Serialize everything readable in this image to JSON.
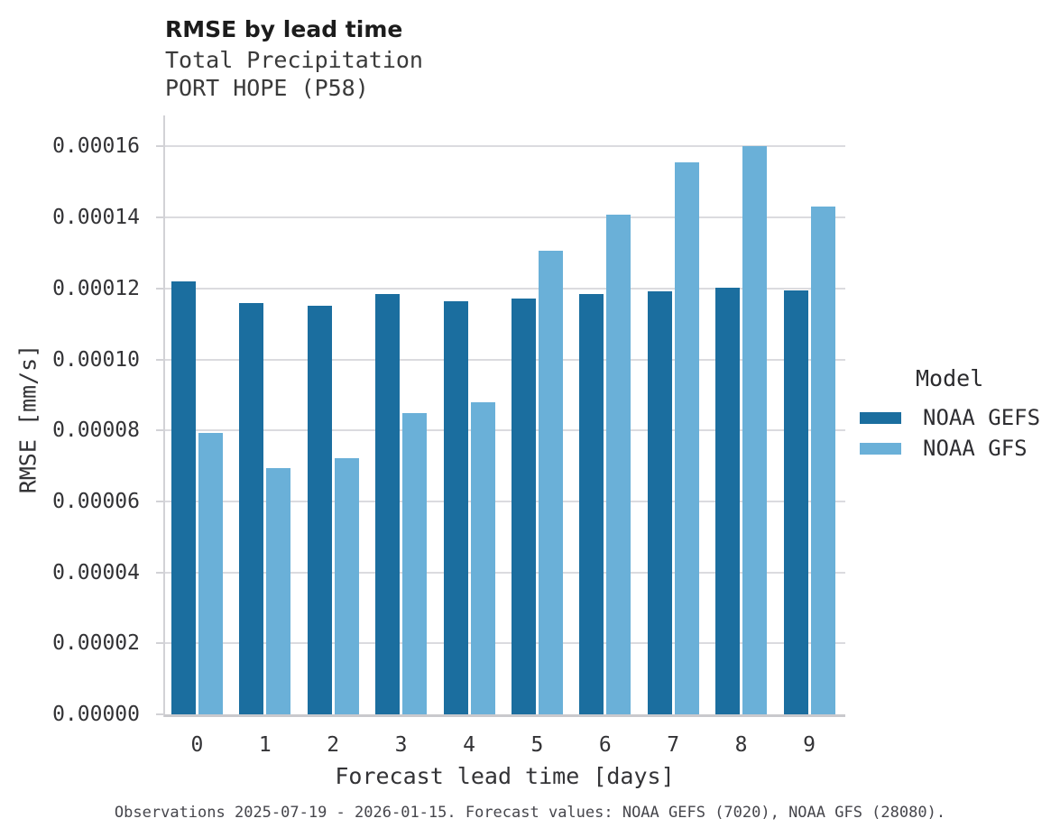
{
  "header": {
    "title": "RMSE by lead time",
    "subtitle1": "Total Precipitation",
    "subtitle2": "PORT HOPE (P58)"
  },
  "chart_data": {
    "type": "bar",
    "title": "RMSE by lead time",
    "subtitle": [
      "Total Precipitation",
      "PORT HOPE (P58)"
    ],
    "categories": [
      "0",
      "1",
      "2",
      "3",
      "4",
      "5",
      "6",
      "7",
      "8",
      "9"
    ],
    "series": [
      {
        "name": "NOAA GEFS",
        "color": "#1B6E9F",
        "values": [
          0.000122,
          0.000116,
          0.000115,
          0.0001185,
          0.0001163,
          0.0001172,
          0.0001185,
          0.0001192,
          0.0001202,
          0.0001195
        ]
      },
      {
        "name": "NOAA GFS",
        "color": "#6AB0D8",
        "values": [
          7.94e-05,
          6.93e-05,
          7.21e-05,
          8.48e-05,
          8.8e-05,
          0.0001305,
          0.0001407,
          0.0001556,
          0.00016,
          0.000143
        ]
      }
    ],
    "xlabel": "Forecast lead time [days]",
    "ylabel": "RMSE [mm/s]",
    "ylim": [
      0,
      0.000169
    ],
    "yticks": {
      "values": [
        0.0,
        2e-05,
        4e-05,
        6e-05,
        8e-05,
        0.0001,
        0.00012,
        0.00014,
        0.00016
      ],
      "labels": [
        "0.00000",
        "0.00002",
        "0.00004",
        "0.00006",
        "0.00008",
        "0.00010",
        "0.00012",
        "0.00014",
        "0.00016"
      ]
    },
    "grid": true,
    "legend_title": "Model",
    "legend_position": "right",
    "colors": {
      "gridline": "#dbdbdf",
      "axis_spine": "#d2d2d6",
      "baseline": "#c9c9cd"
    }
  },
  "footer": {
    "caption": "Observations 2025-07-19 - 2026-01-15. Forecast values: NOAA GEFS (7020), NOAA GFS (28080)."
  }
}
